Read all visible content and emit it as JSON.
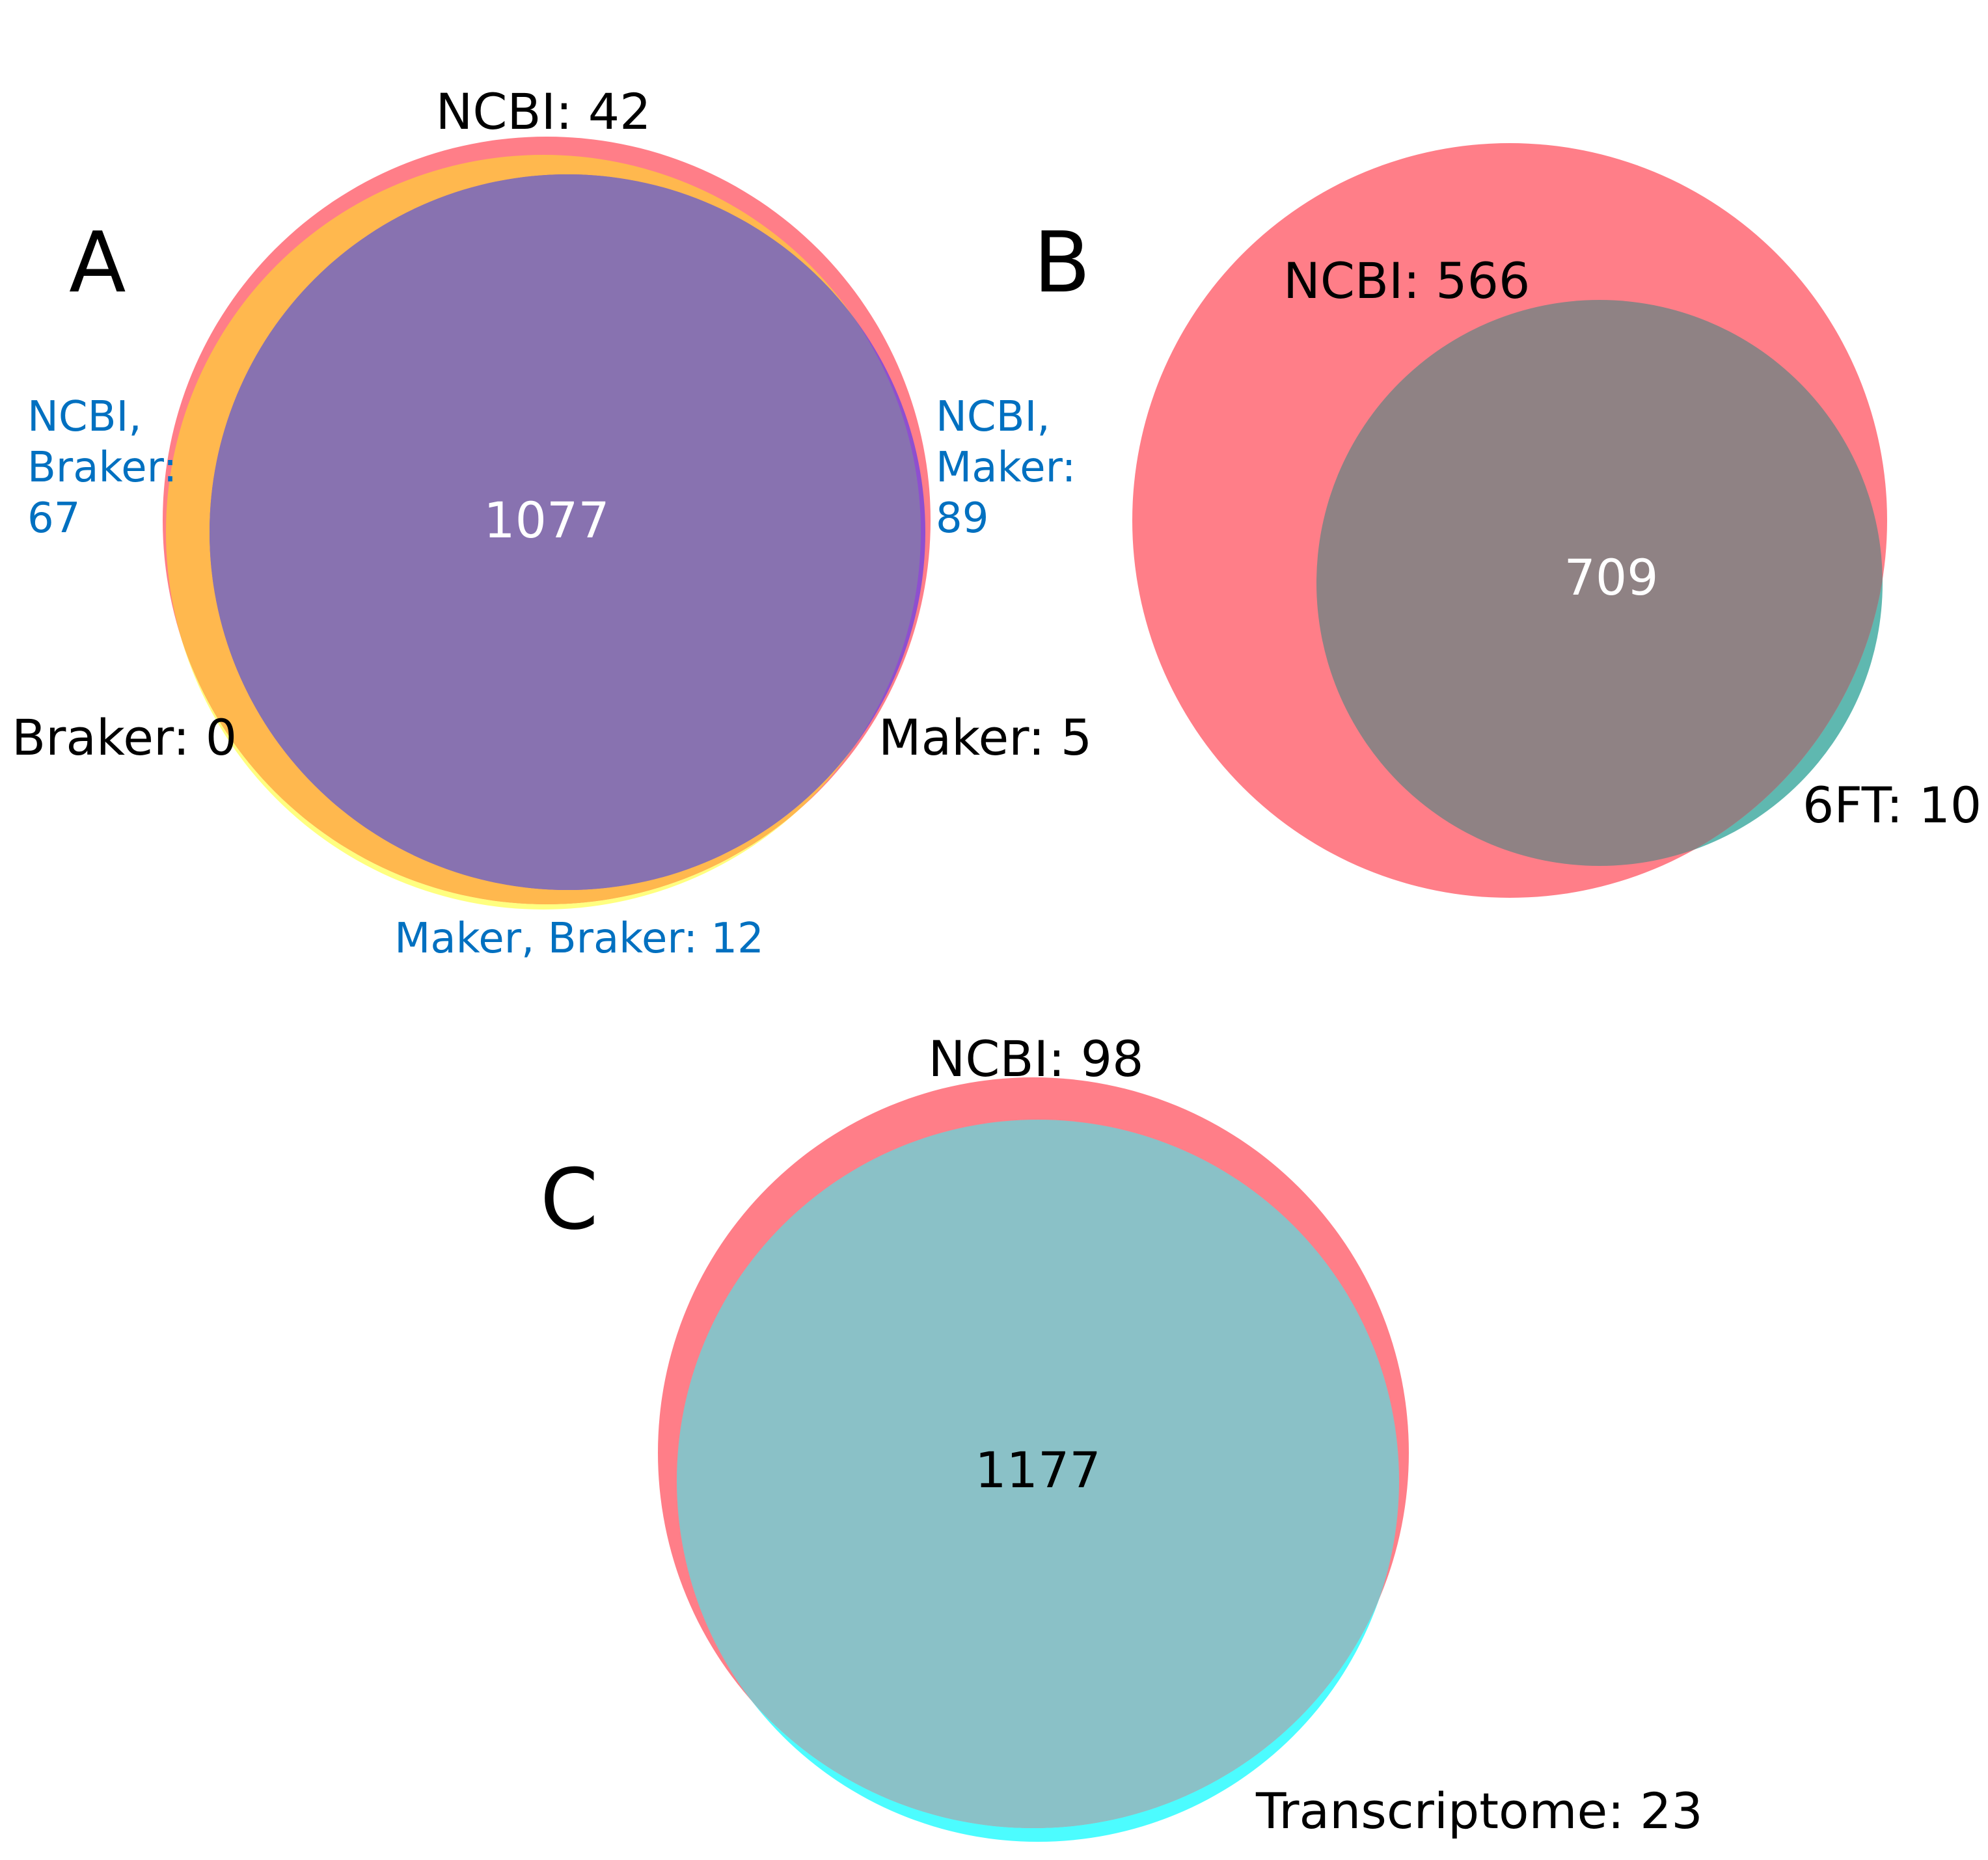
{
  "colors": {
    "ncbi": "#ff7e88",
    "braker": "#ffff80",
    "braker_overlap": "#ffb84e",
    "maker": "#6c86ff",
    "maker_overlap": "#8e4fcf",
    "triple_overlap": "#8872b0",
    "sixft": "#5fb8b0",
    "sixft_overlap": "#8f8284",
    "transcriptome": "#4cfcff",
    "transcriptome_overlap": "#8ac1c7",
    "pair_label": "#0070c0",
    "center_text_light": "#ffffff",
    "center_text_dark": "#000000"
  },
  "panels": {
    "a": {
      "letter": "A",
      "ncbi_only": "NCBI: 42",
      "ncbi_braker": [
        "NCBI,",
        "Braker:",
        "67"
      ],
      "ncbi_maker": [
        "NCBI,",
        "Maker:",
        "89"
      ],
      "braker_only": "Braker: 0",
      "maker_only": "Maker: 5",
      "maker_braker": "Maker, Braker: 12",
      "all_three": "1077"
    },
    "b": {
      "letter": "B",
      "ncbi_only": "NCBI: 566",
      "shared": "709",
      "sixft_only": "6FT: 10"
    },
    "c": {
      "letter": "C",
      "ncbi_only": "NCBI: 98",
      "shared": "1177",
      "transcriptome_only": "Transcriptome: 23"
    }
  }
}
